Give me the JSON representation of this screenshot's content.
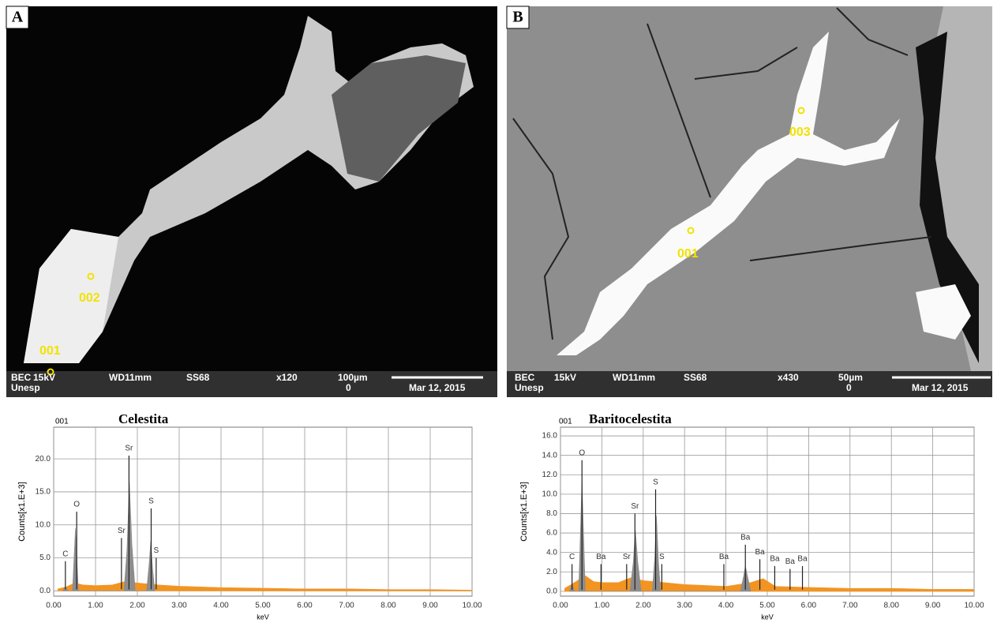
{
  "panels": [
    {
      "letter": "A",
      "spots": [
        "001",
        "002"
      ],
      "info": [
        "BEC",
        "15kV",
        "WD11mm",
        "SS68",
        "x120",
        "100µm",
        "Unesp",
        "0",
        "Mar 12, 2015"
      ]
    },
    {
      "letter": "B",
      "spots": [
        "001",
        "003"
      ],
      "info": [
        "BEC",
        "15kV",
        "WD11mm",
        "SS68",
        "x430",
        "50µm",
        "Unesp",
        "0",
        "Mar 12, 2015"
      ]
    }
  ],
  "chart_data": [
    {
      "type": "area",
      "spot": "001",
      "title": "Celestita",
      "xlabel": "keV",
      "ylabel": "Counts[x1.E+3]",
      "xlim": [
        0,
        10
      ],
      "ylim": [
        -0.8,
        24.8
      ],
      "grid": true,
      "xticks": [
        {
          "value": 0,
          "label": "0.00"
        },
        {
          "value": 1,
          "label": "1.00"
        },
        {
          "value": 2,
          "label": "2.00"
        },
        {
          "value": 3,
          "label": "3.00"
        },
        {
          "value": 4,
          "label": "4.00"
        },
        {
          "value": 5,
          "label": "5.00"
        },
        {
          "value": 6,
          "label": "6.00"
        },
        {
          "value": 7,
          "label": "7.00"
        },
        {
          "value": 8,
          "label": "8.00"
        },
        {
          "value": 9,
          "label": "9.00"
        },
        {
          "value": 10,
          "label": "10.00"
        }
      ],
      "yticks": [
        {
          "value": 0,
          "label": "0.0"
        },
        {
          "value": 5,
          "label": "5.0"
        },
        {
          "value": 10,
          "label": "10.0"
        },
        {
          "value": 15,
          "label": "15.0"
        },
        {
          "value": 20,
          "label": "20.0"
        }
      ],
      "series": [
        {
          "color": "#f29422",
          "x": [
            0.1,
            0.3,
            0.5,
            0.7,
            1.0,
            1.4,
            1.7,
            2.0,
            2.5,
            3.0,
            4.0,
            5.0,
            6.0,
            7.0,
            8.0,
            9.0,
            10.0
          ],
          "values": [
            0.3,
            0.6,
            1.2,
            0.9,
            0.8,
            0.9,
            1.4,
            1.2,
            0.9,
            0.7,
            0.5,
            0.4,
            0.3,
            0.3,
            0.2,
            0.2,
            0.1
          ]
        },
        {
          "color": "#8c8c8c",
          "x": [
            0.22,
            0.28,
            0.34,
            0.45,
            0.52,
            0.59,
            1.68,
            1.75,
            1.81,
            1.87,
            1.95,
            2.22,
            2.28,
            2.32,
            2.37,
            2.42
          ],
          "values": [
            0,
            0.6,
            0,
            0,
            9.5,
            0,
            0,
            6,
            16.5,
            7,
            0,
            0,
            4,
            7.5,
            3,
            0
          ]
        }
      ],
      "annotations": [
        {
          "label": "C",
          "x": 0.28,
          "y": 4.5
        },
        {
          "label": "O",
          "x": 0.55,
          "y": 12
        },
        {
          "label": "Sr",
          "x": 1.62,
          "y": 8
        },
        {
          "label": "Sr",
          "x": 1.8,
          "y": 20.5
        },
        {
          "label": "S",
          "x": 2.33,
          "y": 12.5
        },
        {
          "label": "S",
          "x": 2.45,
          "y": 5
        }
      ]
    },
    {
      "type": "area",
      "spot": "001",
      "title": "Baritocelestita",
      "xlabel": "keV",
      "ylabel": "Counts[x1.E+3]",
      "xlim": [
        0,
        10
      ],
      "ylim": [
        -0.5,
        16.9
      ],
      "grid": true,
      "xticks": [
        {
          "value": 0,
          "label": "0.00"
        },
        {
          "value": 1,
          "label": "1.00"
        },
        {
          "value": 2,
          "label": "2.00"
        },
        {
          "value": 3,
          "label": "3.00"
        },
        {
          "value": 4,
          "label": "4.00"
        },
        {
          "value": 5,
          "label": "5.00"
        },
        {
          "value": 6,
          "label": "6.00"
        },
        {
          "value": 7,
          "label": "7.00"
        },
        {
          "value": 8,
          "label": "8.00"
        },
        {
          "value": 9,
          "label": "9.00"
        },
        {
          "value": 10,
          "label": "10.00"
        }
      ],
      "yticks": [
        {
          "value": 0,
          "label": "0.0"
        },
        {
          "value": 2,
          "label": "2.0"
        },
        {
          "value": 4,
          "label": "4.0"
        },
        {
          "value": 6,
          "label": "6.0"
        },
        {
          "value": 8,
          "label": "8.0"
        },
        {
          "value": 10,
          "label": "10.0"
        },
        {
          "value": 12,
          "label": "12.0"
        },
        {
          "value": 14,
          "label": "14.0"
        },
        {
          "value": 16,
          "label": "16.0"
        }
      ],
      "series": [
        {
          "color": "#f29422",
          "x": [
            0.1,
            0.3,
            0.6,
            0.8,
            1.0,
            1.4,
            1.7,
            2.0,
            2.5,
            3.0,
            3.5,
            4.0,
            4.6,
            4.9,
            5.2,
            6.0,
            7.0,
            8.0,
            9.0,
            10.0
          ],
          "values": [
            0.3,
            0.8,
            1.6,
            1.0,
            0.9,
            0.9,
            1.4,
            1.1,
            0.9,
            0.7,
            0.6,
            0.5,
            0.9,
            1.3,
            0.5,
            0.4,
            0.3,
            0.3,
            0.2,
            0.2
          ]
        },
        {
          "color": "#8c8c8c",
          "x": [
            0.22,
            0.28,
            0.34,
            0.44,
            0.52,
            0.6,
            1.68,
            1.76,
            1.81,
            1.87,
            1.95,
            2.22,
            2.28,
            2.32,
            2.37,
            2.42,
            4.35,
            4.43,
            4.47,
            4.52,
            4.6
          ],
          "values": [
            0,
            0.8,
            0,
            0,
            11.5,
            0,
            0,
            3,
            6.3,
            3,
            0,
            0,
            3.5,
            7.8,
            3,
            0,
            0,
            1.6,
            2.6,
            1.6,
            0
          ]
        }
      ],
      "annotations": [
        {
          "label": "C",
          "x": 0.28,
          "y": 2.8
        },
        {
          "label": "O",
          "x": 0.52,
          "y": 13.5
        },
        {
          "label": "Ba",
          "x": 0.98,
          "y": 2.8
        },
        {
          "label": "Sr",
          "x": 1.6,
          "y": 2.8
        },
        {
          "label": "Sr",
          "x": 1.8,
          "y": 8
        },
        {
          "label": "S",
          "x": 2.3,
          "y": 10.5
        },
        {
          "label": "S",
          "x": 2.45,
          "y": 2.8
        },
        {
          "label": "Ba",
          "x": 3.95,
          "y": 2.8
        },
        {
          "label": "Ba",
          "x": 4.47,
          "y": 4.8
        },
        {
          "label": "Ba",
          "x": 4.82,
          "y": 3.3
        },
        {
          "label": "Ba",
          "x": 5.18,
          "y": 2.6
        },
        {
          "label": "Ba",
          "x": 5.55,
          "y": 2.3
        },
        {
          "label": "Ba",
          "x": 5.85,
          "y": 2.6
        }
      ]
    }
  ]
}
